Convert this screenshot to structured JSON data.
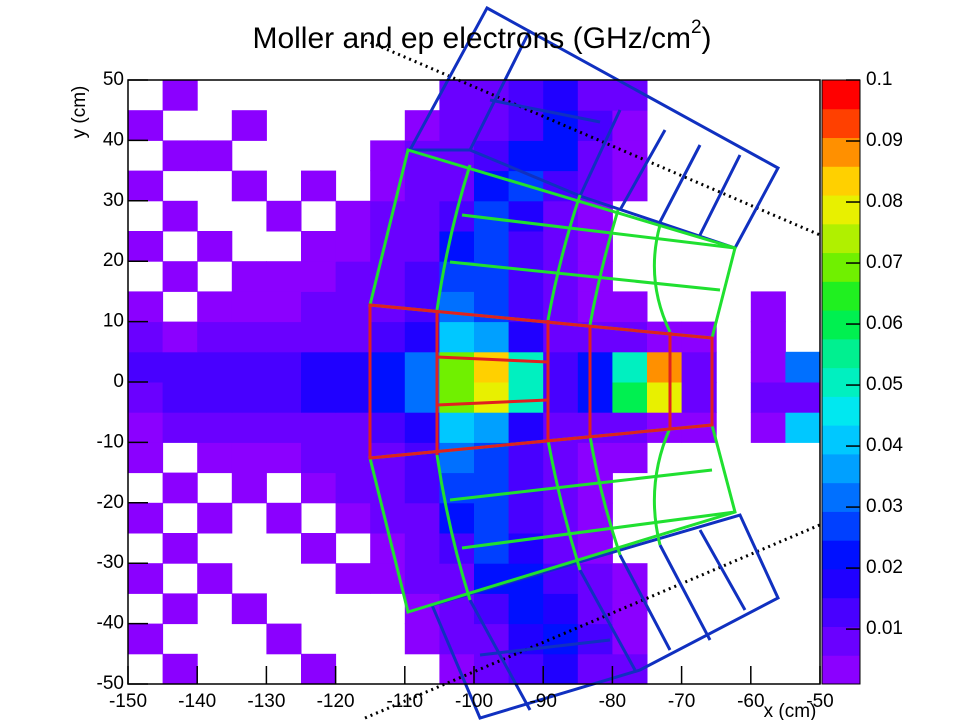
{
  "chart_data": {
    "type": "heatmap",
    "title_parts": [
      "Moller and ep electrons (GHz/cm",
      "2",
      ")"
    ],
    "x_label": "x (cm)",
    "y_label": "y (cm)",
    "xlim": [
      -150,
      -50
    ],
    "ylim": [
      -50,
      50
    ],
    "zlim": [
      0.001,
      0.1
    ],
    "xticks": [
      -150,
      -140,
      -130,
      -120,
      -110,
      -100,
      -90,
      -80,
      -70,
      -60,
      -50
    ],
    "yticks": [
      -50,
      -40,
      -30,
      -20,
      -10,
      0,
      10,
      20,
      30,
      40,
      50
    ],
    "zticks": [
      0.01,
      0.02,
      0.03,
      0.04,
      0.05,
      0.06,
      0.07,
      0.08,
      0.09,
      0.1
    ],
    "xbins": [
      -150,
      -145,
      -140,
      -135,
      -130,
      -125,
      -120,
      -115,
      -110,
      -105,
      -100,
      -95,
      -90,
      -85,
      -80,
      -75,
      -70,
      -65,
      -60,
      -55,
      -50
    ],
    "ybins": [
      -50,
      -45,
      -40,
      -35,
      -30,
      -25,
      -20,
      -15,
      -10,
      -5,
      0,
      5,
      10,
      15,
      20,
      25,
      30,
      35,
      40,
      45,
      50
    ],
    "palette": [
      "#8b00ff",
      "#6a00ff",
      "#4800ff",
      "#2000ff",
      "#0010ff",
      "#0040ff",
      "#0070ff",
      "#00a0ff",
      "#00c8ff",
      "#00e8f0",
      "#00f0c0",
      "#00f090",
      "#00f050",
      "#20f020",
      "#70f000",
      "#b0f000",
      "#e8f000",
      "#ffd000",
      "#ff9000",
      "#ff4000",
      "#ff0000"
    ],
    "z": [
      [
        null,
        0.003,
        null,
        null,
        null,
        0.004,
        null,
        null,
        null,
        0.005,
        0.008,
        0.012,
        0.016,
        0.01,
        0.006,
        null,
        null,
        null,
        null,
        null
      ],
      [
        0.004,
        null,
        null,
        null,
        0.004,
        null,
        null,
        null,
        0.004,
        0.006,
        0.01,
        0.016,
        0.02,
        0.012,
        0.005,
        null,
        null,
        null,
        null,
        null
      ],
      [
        null,
        0.003,
        null,
        0.004,
        null,
        null,
        null,
        null,
        0.005,
        0.008,
        0.014,
        0.022,
        0.018,
        0.01,
        0.004,
        null,
        null,
        null,
        null,
        null
      ],
      [
        0.004,
        null,
        0.003,
        null,
        null,
        null,
        0.003,
        0.004,
        0.006,
        0.01,
        0.02,
        0.024,
        0.014,
        0.006,
        0.003,
        null,
        null,
        null,
        null,
        null
      ],
      [
        null,
        0.004,
        null,
        null,
        null,
        0.003,
        null,
        0.005,
        0.008,
        0.014,
        0.025,
        0.018,
        0.01,
        0.005,
        null,
        null,
        null,
        null,
        null,
        null
      ],
      [
        0.003,
        null,
        0.004,
        null,
        0.004,
        null,
        0.005,
        0.006,
        0.01,
        0.02,
        0.028,
        0.015,
        0.008,
        0.004,
        null,
        null,
        null,
        null,
        null,
        null
      ],
      [
        null,
        0.003,
        null,
        0.004,
        null,
        0.004,
        0.006,
        0.008,
        0.012,
        0.026,
        0.028,
        0.012,
        0.006,
        0.003,
        null,
        null,
        null,
        null,
        null,
        null
      ],
      [
        0.004,
        null,
        0.004,
        0.005,
        0.004,
        0.006,
        0.008,
        0.01,
        0.014,
        0.03,
        0.026,
        0.012,
        0.006,
        0.004,
        0.003,
        null,
        null,
        null,
        null,
        null
      ],
      [
        0.005,
        0.006,
        0.006,
        0.007,
        0.008,
        0.009,
        0.01,
        0.012,
        0.018,
        0.04,
        0.034,
        0.018,
        0.008,
        0.006,
        0.008,
        0.004,
        0.003,
        null,
        0.004,
        0.04
      ],
      [
        0.01,
        0.012,
        0.013,
        0.012,
        0.014,
        0.016,
        0.017,
        0.02,
        0.03,
        0.07,
        0.08,
        0.05,
        0.014,
        0.02,
        0.06,
        0.08,
        0.008,
        null,
        0.006,
        0.01
      ],
      [
        0.012,
        0.012,
        0.014,
        0.013,
        0.015,
        0.016,
        0.018,
        0.02,
        0.03,
        0.07,
        0.085,
        0.05,
        0.014,
        0.02,
        0.05,
        0.09,
        0.01,
        null,
        0.004,
        0.03
      ],
      [
        0.006,
        0.005,
        0.006,
        0.007,
        0.008,
        0.009,
        0.01,
        0.012,
        0.018,
        0.04,
        0.035,
        0.018,
        0.008,
        0.006,
        0.006,
        0.003,
        0.004,
        null,
        0.005,
        null
      ],
      [
        0.003,
        null,
        0.004,
        0.005,
        0.005,
        0.006,
        0.008,
        0.01,
        0.014,
        0.03,
        0.026,
        0.012,
        0.006,
        0.004,
        0.003,
        null,
        null,
        null,
        0.004,
        null
      ],
      [
        null,
        0.004,
        null,
        0.004,
        0.004,
        0.005,
        0.006,
        0.008,
        0.012,
        0.026,
        0.028,
        0.012,
        0.006,
        0.003,
        null,
        null,
        null,
        null,
        null,
        null
      ],
      [
        0.004,
        null,
        0.003,
        null,
        null,
        0.004,
        0.005,
        0.006,
        0.01,
        0.02,
        0.028,
        0.014,
        0.008,
        0.004,
        null,
        null,
        null,
        null,
        null,
        null
      ],
      [
        null,
        0.003,
        null,
        null,
        0.004,
        null,
        0.004,
        0.006,
        0.008,
        0.014,
        0.025,
        0.018,
        0.01,
        0.005,
        null,
        null,
        null,
        null,
        null,
        null
      ],
      [
        0.004,
        null,
        null,
        0.003,
        null,
        0.003,
        null,
        0.005,
        0.007,
        0.01,
        0.02,
        0.025,
        0.014,
        0.006,
        0.003,
        null,
        null,
        null,
        null,
        null
      ],
      [
        null,
        0.004,
        0.003,
        null,
        null,
        null,
        null,
        0.004,
        0.006,
        0.008,
        0.014,
        0.022,
        0.02,
        0.01,
        0.004,
        null,
        null,
        null,
        null,
        null
      ],
      [
        0.005,
        null,
        null,
        0.004,
        null,
        null,
        null,
        null,
        0.004,
        0.006,
        0.01,
        0.015,
        0.022,
        0.012,
        0.005,
        null,
        null,
        null,
        null,
        null
      ],
      [
        null,
        0.004,
        null,
        null,
        null,
        null,
        null,
        null,
        null,
        0.006,
        0.008,
        0.012,
        0.018,
        0.01,
        0.006,
        null,
        null,
        null,
        null,
        null
      ]
    ]
  }
}
